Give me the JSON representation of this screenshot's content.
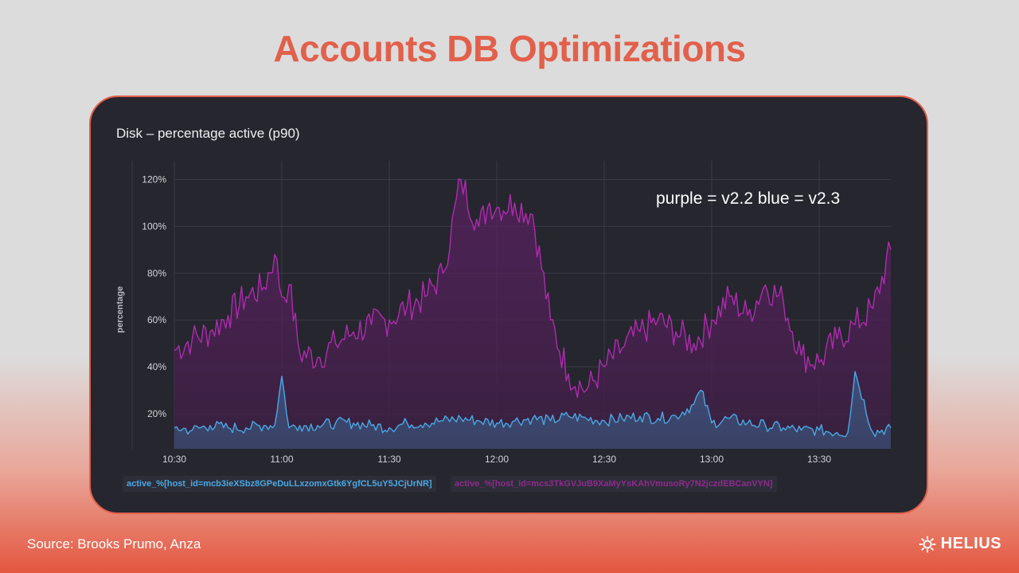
{
  "slide": {
    "title": "Accounts DB Optimizations",
    "source": "Source: Brooks Prumo, Anza",
    "logo_text": "HELIUS",
    "title_color": "#e2604b"
  },
  "chart_data": {
    "type": "area",
    "title": "Disk – percentage active (p90)",
    "ylabel": "percentage",
    "xlabel": "",
    "ylim": [
      5,
      128
    ],
    "xlim": [
      "10:30",
      "13:50"
    ],
    "grid": true,
    "y_ticks": [
      "20%",
      "40%",
      "60%",
      "80%",
      "100%",
      "120%"
    ],
    "y_tick_values": [
      20,
      40,
      60,
      80,
      100,
      120
    ],
    "x_ticks": [
      "10:30",
      "11:00",
      "11:30",
      "12:00",
      "12:30",
      "13:00",
      "13:30"
    ],
    "x_tick_minutes": [
      0,
      30,
      60,
      90,
      120,
      150,
      180
    ],
    "annotation": "purple = v2.2 blue = v2.3",
    "legend_position": "bottom-left",
    "series": [
      {
        "name": "active_%[host_id=mcb3ieXSbz8GPeDuLLxzomxGtk6YgfCL5uY5JCjUrNR]",
        "color": "#4aa8e6",
        "x": [
          "10:30",
          "10:35",
          "10:40",
          "10:45",
          "10:50",
          "10:55",
          "10:58",
          "11:00",
          "11:02",
          "11:05",
          "11:10",
          "11:15",
          "11:20",
          "11:25",
          "11:30",
          "11:35",
          "11:40",
          "11:45",
          "11:50",
          "11:55",
          "12:00",
          "12:05",
          "12:10",
          "12:15",
          "12:20",
          "12:25",
          "12:30",
          "12:35",
          "12:40",
          "12:45",
          "12:50",
          "12:55",
          "12:57",
          "13:00",
          "13:05",
          "13:10",
          "13:15",
          "13:20",
          "13:25",
          "13:30",
          "13:35",
          "13:38",
          "13:40",
          "13:45",
          "13:50"
        ],
        "values": [
          14,
          13,
          15,
          14,
          14,
          15,
          15,
          36,
          14,
          15,
          15,
          16,
          16,
          15,
          14,
          16,
          16,
          17,
          18,
          17,
          16,
          17,
          18,
          17,
          19,
          18,
          17,
          18,
          19,
          18,
          19,
          24,
          30,
          16,
          18,
          16,
          15,
          14,
          13,
          13,
          12,
          12,
          38,
          12,
          14
        ]
      },
      {
        "name": "active_%[host_id=mcs3TkGVJuB9XaMyYsKAhVmusoRy7N2jczdEBCanVYN]",
        "color": "#b02bb0",
        "x": [
          "10:30",
          "10:35",
          "10:40",
          "10:45",
          "10:50",
          "10:55",
          "10:58",
          "11:00",
          "11:02",
          "11:05",
          "11:10",
          "11:15",
          "11:20",
          "11:25",
          "11:30",
          "11:35",
          "11:40",
          "11:45",
          "11:50",
          "11:55",
          "11:58",
          "12:00",
          "12:05",
          "12:10",
          "12:15",
          "12:20",
          "12:25",
          "12:30",
          "12:35",
          "12:40",
          "12:45",
          "12:50",
          "12:55",
          "13:00",
          "13:05",
          "13:10",
          "13:15",
          "13:20",
          "13:25",
          "13:30",
          "13:35",
          "13:40",
          "13:45",
          "13:50"
        ],
        "values": [
          47,
          52,
          55,
          62,
          70,
          74,
          88,
          70,
          75,
          46,
          44,
          50,
          55,
          58,
          60,
          66,
          70,
          80,
          120,
          100,
          110,
          108,
          110,
          105,
          60,
          37,
          30,
          40,
          48,
          55,
          60,
          55,
          50,
          60,
          70,
          62,
          75,
          68,
          45,
          42,
          52,
          58,
          65,
          90
        ]
      }
    ]
  }
}
